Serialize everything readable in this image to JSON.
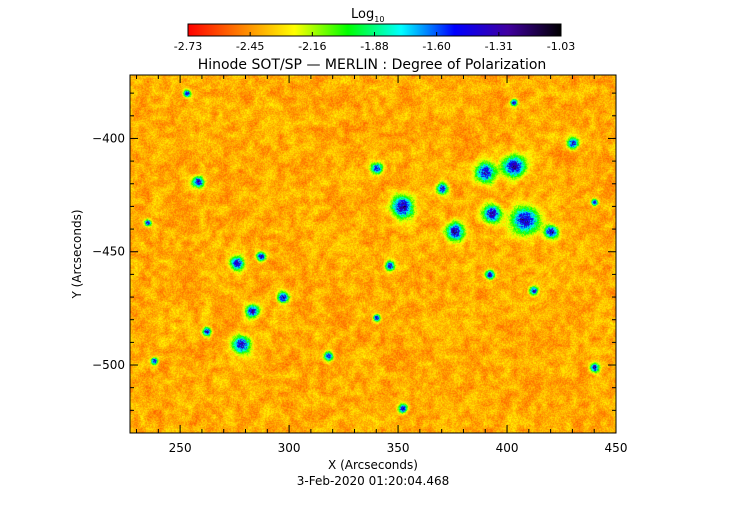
{
  "chart_data": {
    "type": "heatmap",
    "title": "Hinode SOT/SP — MERLIN : Degree of Polarization",
    "xlabel": "X (Arcseconds)",
    "ylabel": "Y (Arcseconds)",
    "xlim": [
      227,
      450
    ],
    "ylim": [
      -530,
      -372
    ],
    "xticks": [
      250,
      300,
      350,
      400,
      450
    ],
    "yticks": [
      -400,
      -450,
      -500
    ],
    "timestamp": "3-Feb-2020 01:20:04.468",
    "colorbar": {
      "label": "Log",
      "label_subscript": "10",
      "ticks": [
        "-2.73",
        "-2.45",
        "-2.16",
        "-1.88",
        "-1.60",
        "-1.31",
        "-1.03"
      ],
      "range": [
        -2.73,
        -1.03
      ],
      "colormap": [
        "#ff0000",
        "#ff8000",
        "#ffff00",
        "#00ff00",
        "#00ffff",
        "#0000ff",
        "#4000a0",
        "#000000"
      ]
    },
    "high_polarization_regions": [
      {
        "x": 253,
        "y": -380,
        "size": 3
      },
      {
        "x": 258,
        "y": -419,
        "size": 5
      },
      {
        "x": 276,
        "y": -455,
        "size": 6
      },
      {
        "x": 287,
        "y": -452,
        "size": 4
      },
      {
        "x": 283,
        "y": -476,
        "size": 6
      },
      {
        "x": 297,
        "y": -470,
        "size": 5
      },
      {
        "x": 278,
        "y": -491,
        "size": 8
      },
      {
        "x": 262,
        "y": -485,
        "size": 4
      },
      {
        "x": 318,
        "y": -496,
        "size": 4
      },
      {
        "x": 340,
        "y": -413,
        "size": 5
      },
      {
        "x": 352,
        "y": -430,
        "size": 10
      },
      {
        "x": 346,
        "y": -456,
        "size": 4
      },
      {
        "x": 370,
        "y": -422,
        "size": 5
      },
      {
        "x": 376,
        "y": -441,
        "size": 8
      },
      {
        "x": 390,
        "y": -415,
        "size": 9
      },
      {
        "x": 403,
        "y": -412,
        "size": 10
      },
      {
        "x": 408,
        "y": -436,
        "size": 12
      },
      {
        "x": 393,
        "y": -433,
        "size": 8
      },
      {
        "x": 420,
        "y": -441,
        "size": 6
      },
      {
        "x": 412,
        "y": -467,
        "size": 4
      },
      {
        "x": 392,
        "y": -460,
        "size": 4
      },
      {
        "x": 403,
        "y": -384,
        "size": 3
      },
      {
        "x": 430,
        "y": -402,
        "size": 5
      },
      {
        "x": 440,
        "y": -428,
        "size": 3
      },
      {
        "x": 340,
        "y": -479,
        "size": 3
      },
      {
        "x": 352,
        "y": -519,
        "size": 4
      },
      {
        "x": 440,
        "y": -501,
        "size": 4
      },
      {
        "x": 235,
        "y": -437,
        "size": 3
      },
      {
        "x": 238,
        "y": -498,
        "size": 3
      }
    ]
  }
}
